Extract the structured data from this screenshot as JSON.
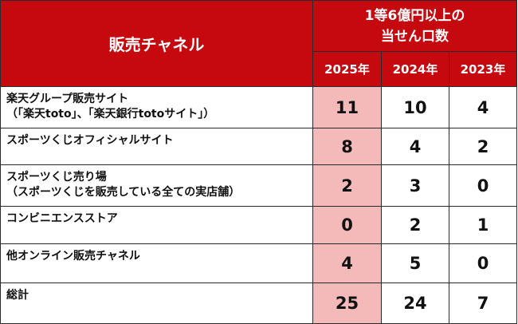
{
  "header": {
    "channel_label": "販売チャネル",
    "metric_line1": "1等6億円以上の",
    "metric_line2": "当せん口数",
    "years": [
      "2025年",
      "2024年",
      "2023年"
    ]
  },
  "rows": [
    {
      "label_line1": "楽天グループ販売サイト",
      "label_line2": "（「楽天toto」、「楽天銀行totoサイト」）",
      "values": [
        "11",
        "10",
        "4"
      ]
    },
    {
      "label_line1": "スポーツくじオフィシャルサイト",
      "label_line2": "",
      "values": [
        "8",
        "4",
        "2"
      ]
    },
    {
      "label_line1": "スポーツくじ売り場",
      "label_line2": "（スポーツくじを販売している全ての実店舗）",
      "values": [
        "2",
        "3",
        "0"
      ]
    },
    {
      "label_line1": "コンビニエンスストア",
      "label_line2": "",
      "values": [
        "0",
        "2",
        "1"
      ]
    },
    {
      "label_line1": "他オンライン販売チャネル",
      "label_line2": "",
      "values": [
        "4",
        "5",
        "0"
      ]
    },
    {
      "label_line1": "総計",
      "label_line2": "",
      "values": [
        "25",
        "24",
        "7"
      ]
    }
  ],
  "colors": {
    "header_red": "#c6090f",
    "highlight_pink": "#f4b9b9"
  }
}
